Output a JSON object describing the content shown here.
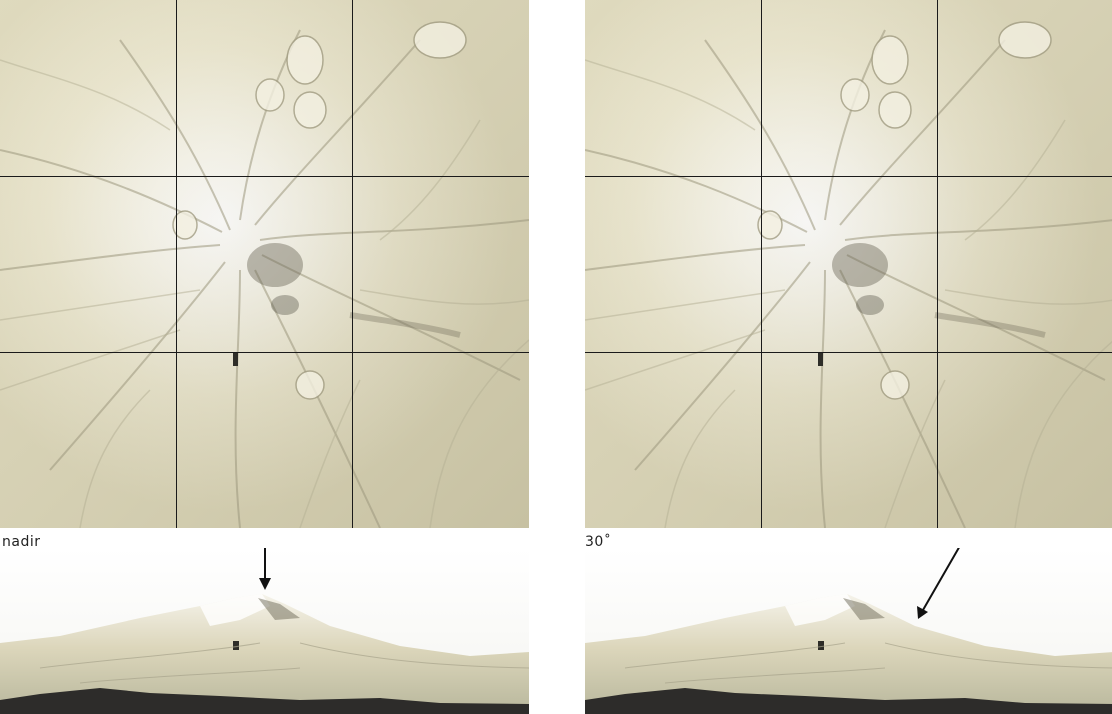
{
  "panels": [
    {
      "label": "nadir",
      "view": "nadir"
    },
    {
      "label": "30˚",
      "view": "oblique"
    }
  ],
  "colors": {
    "terrain_base": "#e4dfc3",
    "terrain_light": "#fbf9ef",
    "terrain_shadow": "#8f8a72",
    "grid": "#1a1a1a",
    "arrow": "#111111",
    "ground_dark": "#2d2c2a"
  }
}
